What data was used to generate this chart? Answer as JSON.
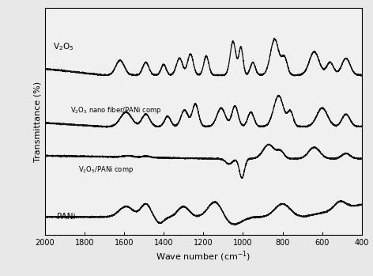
{
  "title": "",
  "xlabel": "Wave number (cm⁻¹)",
  "ylabel": "Transmittance (%)",
  "xlim": [
    2000,
    400
  ],
  "background_color": "#e8e8e8",
  "plot_bg": "#f0f0f0",
  "line_color": "#111111",
  "xticks": [
    2000,
    1800,
    1600,
    1400,
    1200,
    1000,
    800,
    600,
    400
  ],
  "labels": {
    "v2o5": "V₂O₅",
    "nanofiber": "V₂O₅ nano fiber/PANi comp",
    "comp": "V₂O₅/PANi comp",
    "pani": "PANi"
  },
  "offsets": [
    62,
    42,
    22,
    4
  ]
}
